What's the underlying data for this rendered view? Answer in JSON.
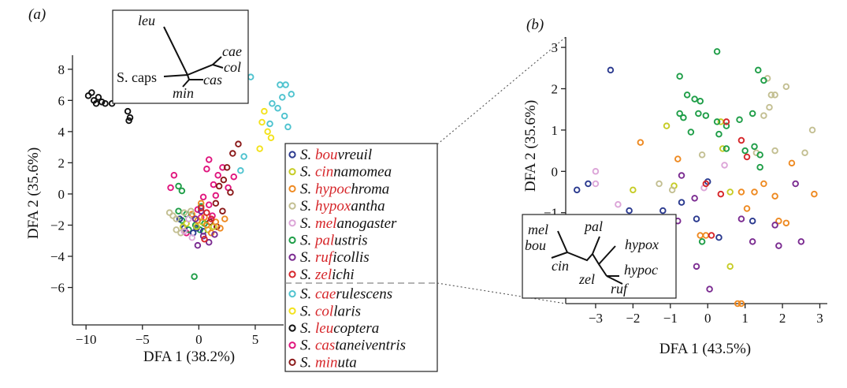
{
  "chart_data": [
    {
      "type": "scatter",
      "panel_label": "(a)",
      "xlabel": "DFA 1 (38.2%)",
      "ylabel": "DFA 2 (35.6%)",
      "xlim": [
        -11.2,
        11.5
      ],
      "ylim": [
        -8.4,
        8.9
      ],
      "xticks": [
        -10,
        -5,
        0,
        5
      ],
      "yticks": [
        8,
        6,
        4,
        2,
        0,
        -2,
        -4,
        -6
      ],
      "legend_placement": "right of plot",
      "legend_entries": [
        {
          "name": "S. bouvreuil",
          "prefix": "S. ",
          "hl": "bou",
          "rest": "vreuil",
          "color": "#2b3a8f"
        },
        {
          "name": "S. cinnamomea",
          "prefix": "S. ",
          "hl": "cin",
          "rest": "namomea",
          "color": "#c6cc26"
        },
        {
          "name": "S. hypochroma",
          "prefix": "S. ",
          "hl": "hypoc",
          "rest": "hroma",
          "color": "#ee8a22"
        },
        {
          "name": "S. hypoxantha",
          "prefix": "S. ",
          "hl": "hypox",
          "rest": "antha",
          "color": "#c3bf92"
        },
        {
          "name": "S. melanogaster",
          "prefix": "S. ",
          "hl": "mel",
          "rest": "anogaster",
          "color": "#dca5d8"
        },
        {
          "name": "S. palustris",
          "prefix": "S. ",
          "hl": "pal",
          "rest": "ustris",
          "color": "#1f9e48"
        },
        {
          "name": "S. ruficollis",
          "prefix": "S. ",
          "hl": "ruf",
          "rest": "icollis",
          "color": "#7b2c91"
        },
        {
          "name": "S. zelichi",
          "prefix": "S. ",
          "hl": "zel",
          "rest": "ichi",
          "color": "#d6262a"
        },
        {
          "name": "S. caerulescens",
          "prefix": "S. ",
          "hl": "cae",
          "rest": "rulescens",
          "color": "#4fc3cf"
        },
        {
          "name": "S. collaris",
          "prefix": "S. ",
          "hl": "col",
          "rest": "laris",
          "color": "#f3e21c"
        },
        {
          "name": "S. leucoptera",
          "prefix": "S. ",
          "hl": "leu",
          "rest": "coptera",
          "color": "#111111"
        },
        {
          "name": "S. castaneiventris",
          "prefix": "S. ",
          "hl": "cas",
          "rest": "taneiventris",
          "color": "#e0167e"
        },
        {
          "name": "S. minuta",
          "prefix": "S. ",
          "hl": "min",
          "rest": "uta",
          "color": "#8b1a1a"
        }
      ],
      "highlight_color": "#d6262a",
      "series": [
        {
          "name": "S. leucoptera",
          "color": "#111111",
          "points": [
            [
              -9.8,
              6.3
            ],
            [
              -9.5,
              6.5
            ],
            [
              -9.3,
              6
            ],
            [
              -9.1,
              5.8
            ],
            [
              -8.9,
              6.2
            ],
            [
              -8.6,
              5.9
            ],
            [
              -8.3,
              5.8
            ],
            [
              -7.7,
              5.8
            ],
            [
              -6.3,
              5.3
            ],
            [
              -6.1,
              4.9
            ],
            [
              -6.2,
              4.7
            ]
          ]
        },
        {
          "name": "S. caerulescens",
          "color": "#4fc3cf",
          "points": [
            [
              4.6,
              7.5
            ],
            [
              7.2,
              7
            ],
            [
              7.7,
              7
            ],
            [
              8.2,
              6.4
            ],
            [
              7.4,
              6.2
            ],
            [
              6.5,
              5.8
            ],
            [
              7,
              5.5
            ],
            [
              7.6,
              5
            ],
            [
              6.3,
              4.5
            ],
            [
              7.9,
              4.3
            ],
            [
              3.7,
              1.5
            ],
            [
              4,
              2.4
            ]
          ]
        },
        {
          "name": "S. collaris",
          "color": "#f3e21c",
          "points": [
            [
              5.8,
              5.3
            ],
            [
              5.6,
              4.6
            ],
            [
              6.1,
              4
            ],
            [
              6.4,
              3.6
            ],
            [
              5.4,
              2.9
            ]
          ]
        },
        {
          "name": "S. castaneiventris",
          "color": "#e0167e",
          "points": [
            [
              -2.2,
              1.2
            ],
            [
              -2.5,
              0.4
            ],
            [
              0.7,
              1.6
            ],
            [
              0.9,
              2.2
            ],
            [
              1.7,
              1.2
            ],
            [
              2.1,
              1.7
            ],
            [
              2.6,
              0.4
            ],
            [
              3.1,
              1.1
            ],
            [
              1.3,
              0.6
            ],
            [
              1.5,
              -0.1
            ],
            [
              0.4,
              -0.2
            ],
            [
              -0.1,
              -1
            ],
            [
              0.2,
              -1.5
            ],
            [
              0.9,
              -0.7
            ],
            [
              1.2,
              -1.4
            ],
            [
              -1.1,
              -2.5
            ]
          ]
        },
        {
          "name": "S. minuta",
          "color": "#8b1a1a",
          "points": [
            [
              3.5,
              3.2
            ],
            [
              3,
              2.6
            ],
            [
              2.5,
              1.7
            ],
            [
              2.2,
              0.9
            ],
            [
              1.8,
              0.5
            ],
            [
              2.8,
              0.1
            ],
            [
              1.5,
              -0.6
            ],
            [
              2.1,
              -1.1
            ],
            [
              1,
              -1.8
            ],
            [
              1.6,
              -2.1
            ]
          ]
        },
        {
          "name": "S. palustris",
          "color": "#1f9e48",
          "points": [
            [
              -1.8,
              0.5
            ],
            [
              -1.5,
              0.2
            ],
            [
              -1.8,
              -1.1
            ],
            [
              -1.5,
              -1.7
            ],
            [
              -1.1,
              -1.3
            ],
            [
              -0.6,
              -1.4
            ],
            [
              -0.9,
              -2.3
            ],
            [
              -0.3,
              -2
            ],
            [
              0.1,
              -2.3
            ],
            [
              0.5,
              -1.9
            ],
            [
              0.2,
              -0.8
            ],
            [
              -0.4,
              -5.3
            ]
          ]
        },
        {
          "name": "S. bouvreuil",
          "color": "#2b3a8f",
          "points": [
            [
              -1.7,
              -1.6
            ],
            [
              -1.3,
              -2.2
            ],
            [
              -0.5,
              -2.5
            ],
            [
              -0.2,
              -2.2
            ],
            [
              0.4,
              -2.4
            ]
          ]
        },
        {
          "name": "S. cinnamomea",
          "color": "#c6cc26",
          "points": [
            [
              -1.4,
              -2.1
            ],
            [
              -1.1,
              -1.9
            ],
            [
              -0.2,
              -2.1
            ],
            [
              0.3,
              -1.8
            ],
            [
              0.8,
              -2.3
            ],
            [
              1.3,
              -2.1
            ]
          ]
        },
        {
          "name": "S. hypochroma",
          "color": "#ee8a22",
          "points": [
            [
              -0.6,
              -1.3
            ],
            [
              -0.1,
              -1.7
            ],
            [
              0.5,
              -1.5
            ],
            [
              0.7,
              -2
            ],
            [
              1.1,
              -2.5
            ],
            [
              1.5,
              -1.8
            ],
            [
              1.9,
              -2.2
            ],
            [
              2.3,
              -1.6
            ],
            [
              0.2,
              -0.6
            ]
          ]
        },
        {
          "name": "S. hypoxantha",
          "color": "#c3bf92",
          "points": [
            [
              -2.6,
              -1.2
            ],
            [
              -2.3,
              -1.4
            ],
            [
              -2,
              -1.6
            ],
            [
              -1.3,
              -1.2
            ],
            [
              -0.7,
              -1.1
            ],
            [
              -1.6,
              -2.5
            ],
            [
              -2,
              -2.3
            ]
          ]
        },
        {
          "name": "S. melanogaster",
          "color": "#dca5d8",
          "points": [
            [
              -1.3,
              -2.4
            ],
            [
              -0.6,
              -2.8
            ],
            [
              -0.9,
              -1.6
            ]
          ]
        },
        {
          "name": "S. ruficollis",
          "color": "#7b2c91",
          "points": [
            [
              -0.3,
              -1.6
            ],
            [
              0.4,
              -2.7
            ],
            [
              -0.1,
              -3.3
            ],
            [
              0.9,
              -3.1
            ],
            [
              1.4,
              -2.6
            ],
            [
              0.2,
              -1.1
            ]
          ]
        },
        {
          "name": "S. zelichi",
          "color": "#d6262a",
          "points": [
            [
              0.2,
              -0.9
            ],
            [
              0.7,
              -1.2
            ],
            [
              1.1,
              -1.6
            ],
            [
              0.5,
              -2.9
            ]
          ]
        }
      ],
      "tree": {
        "labels": [
          "leu",
          "cae",
          "col",
          "S. caps",
          "cas",
          "min"
        ]
      }
    },
    {
      "type": "scatter",
      "panel_label": "(b)",
      "xlabel": "DFA 1 (43.5%)",
      "ylabel": "DFA 2 (35.6%)",
      "xlim": [
        -3.8,
        3.2
      ],
      "ylim": [
        -3.2,
        3.25
      ],
      "xticks": [
        -3,
        -2,
        -1,
        0,
        1,
        2,
        3
      ],
      "yticks": [
        3,
        2,
        1,
        0,
        -1
      ],
      "series": [
        {
          "name": "S. bouvreuil",
          "color": "#2b3a8f",
          "points": [
            [
              -2.6,
              2.45
            ],
            [
              -3.5,
              -0.45
            ],
            [
              -3.2,
              -0.3
            ],
            [
              -2.1,
              -0.95
            ],
            [
              -1.2,
              -0.95
            ],
            [
              -0.7,
              -0.75
            ],
            [
              -0.3,
              -1.15
            ],
            [
              1.2,
              -1.2
            ],
            [
              0.3,
              -1.6
            ],
            [
              0,
              -0.25
            ]
          ]
        },
        {
          "name": "S. cinnamomea",
          "color": "#c6cc26",
          "points": [
            [
              -2,
              -0.45
            ],
            [
              -1.1,
              1.1
            ],
            [
              -0.9,
              -0.35
            ],
            [
              0.35,
              1.2
            ],
            [
              0.6,
              -0.5
            ],
            [
              0.4,
              0.55
            ],
            [
              -1,
              -1.6
            ],
            [
              0.6,
              -2.3
            ]
          ]
        },
        {
          "name": "S. hypochroma",
          "color": "#ee8a22",
          "points": [
            [
              -1.8,
              0.7
            ],
            [
              -0.8,
              0.3
            ],
            [
              0.9,
              -0.5
            ],
            [
              1.05,
              -0.9
            ],
            [
              1.25,
              -0.5
            ],
            [
              1.5,
              -0.3
            ],
            [
              1.9,
              -1.2
            ],
            [
              2.25,
              0.2
            ],
            [
              2.1,
              -1.25
            ],
            [
              2.85,
              -0.55
            ],
            [
              1.8,
              -0.6
            ],
            [
              0.8,
              -3.2
            ],
            [
              0.9,
              -3.2
            ],
            [
              -0.2,
              -1.55
            ],
            [
              -0.05,
              -1.55
            ]
          ]
        },
        {
          "name": "S. hypoxantha",
          "color": "#c3bf92",
          "points": [
            [
              1.8,
              1.85
            ],
            [
              1.7,
              1.85
            ],
            [
              2.1,
              2.05
            ],
            [
              2.8,
              1
            ],
            [
              1.8,
              0.5
            ],
            [
              2.6,
              0.45
            ],
            [
              1.3,
              0.45
            ],
            [
              -0.95,
              -0.45
            ],
            [
              -1.3,
              -0.3
            ],
            [
              -0.15,
              0.4
            ],
            [
              1.65,
              1.55
            ],
            [
              1.6,
              2.25
            ],
            [
              1.5,
              1.35
            ]
          ]
        },
        {
          "name": "S. melanogaster",
          "color": "#dca5d8",
          "points": [
            [
              -3,
              0
            ],
            [
              -3,
              -0.3
            ],
            [
              -2.4,
              -0.8
            ],
            [
              -1,
              -1.3
            ],
            [
              -0.1,
              -0.4
            ],
            [
              0.45,
              0.15
            ]
          ]
        },
        {
          "name": "S. palustris",
          "color": "#1f9e48",
          "points": [
            [
              0.25,
              2.9
            ],
            [
              -0.75,
              2.3
            ],
            [
              -0.55,
              1.85
            ],
            [
              -0.35,
              1.75
            ],
            [
              -0.2,
              1.7
            ],
            [
              1.35,
              2.45
            ],
            [
              1.5,
              2.2
            ],
            [
              -0.75,
              1.4
            ],
            [
              -0.25,
              1.4
            ],
            [
              -0.05,
              1.35
            ],
            [
              0.25,
              1.2
            ],
            [
              -0.45,
              0.95
            ],
            [
              -0.65,
              1.3
            ],
            [
              0.5,
              1.1
            ],
            [
              0.3,
              0.9
            ],
            [
              0.5,
              0.55
            ],
            [
              1,
              0.5
            ],
            [
              1.25,
              0.6
            ],
            [
              1.4,
              0.4
            ],
            [
              1.4,
              0.1
            ],
            [
              1.2,
              1.4
            ],
            [
              0.85,
              1.25
            ],
            [
              -0.15,
              -1.7
            ]
          ]
        },
        {
          "name": "S. ruficollis",
          "color": "#7b2c91",
          "points": [
            [
              -0.7,
              -0.1
            ],
            [
              -0.35,
              -0.65
            ],
            [
              -1.1,
              -1.2
            ],
            [
              -0.8,
              -1.2
            ],
            [
              -0.3,
              -2.3
            ],
            [
              0.05,
              -2.85
            ],
            [
              0.9,
              -1.15
            ],
            [
              1.2,
              -1.7
            ],
            [
              1.9,
              -1.8
            ],
            [
              1.8,
              -1.3
            ],
            [
              2.35,
              -0.3
            ],
            [
              2.5,
              -1.7
            ]
          ]
        },
        {
          "name": "S. zelichi",
          "color": "#d6262a",
          "points": [
            [
              0.5,
              1.2
            ],
            [
              0.9,
              0.75
            ],
            [
              1.05,
              0.35
            ],
            [
              -0.05,
              -0.3
            ],
            [
              0.35,
              -0.55
            ],
            [
              0.1,
              -1.55
            ]
          ]
        }
      ],
      "tree": {
        "labels": [
          "mel",
          "pal",
          "bou",
          "hypox",
          "cin",
          "hypoc",
          "zel",
          "ruf"
        ]
      }
    }
  ]
}
